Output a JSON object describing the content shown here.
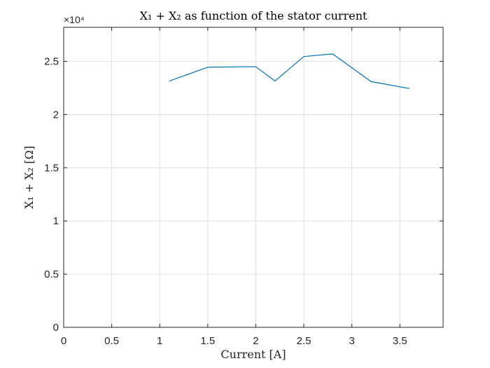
{
  "chart_data": {
    "type": "line",
    "title": "X₁ + X₂ as function of the stator current",
    "xlabel": "Current [A]",
    "ylabel": "X₁ + X₂ [Ω]",
    "y_exponent_label": "×10⁴",
    "xlim": [
      0,
      3.95
    ],
    "ylim": [
      0,
      28200
    ],
    "x_ticks": [
      0,
      0.5,
      1,
      1.5,
      2,
      2.5,
      3,
      3.5
    ],
    "x_tick_labels": [
      "0",
      "0.5",
      "1",
      "1.5",
      "2",
      "2.5",
      "3",
      "3.5"
    ],
    "y_ticks": [
      0,
      5000,
      10000,
      15000,
      20000,
      25000
    ],
    "y_tick_labels": [
      "0",
      "0.5",
      "1",
      "1.5",
      "2",
      "2.5"
    ],
    "grid": true,
    "series": [
      {
        "color": "#0072BD",
        "x": [
          1.1,
          1.5,
          2.0,
          2.2,
          2.5,
          2.8,
          3.2,
          3.6
        ],
        "y": [
          23150,
          24450,
          24500,
          23150,
          25450,
          25700,
          23100,
          22450
        ]
      }
    ]
  }
}
